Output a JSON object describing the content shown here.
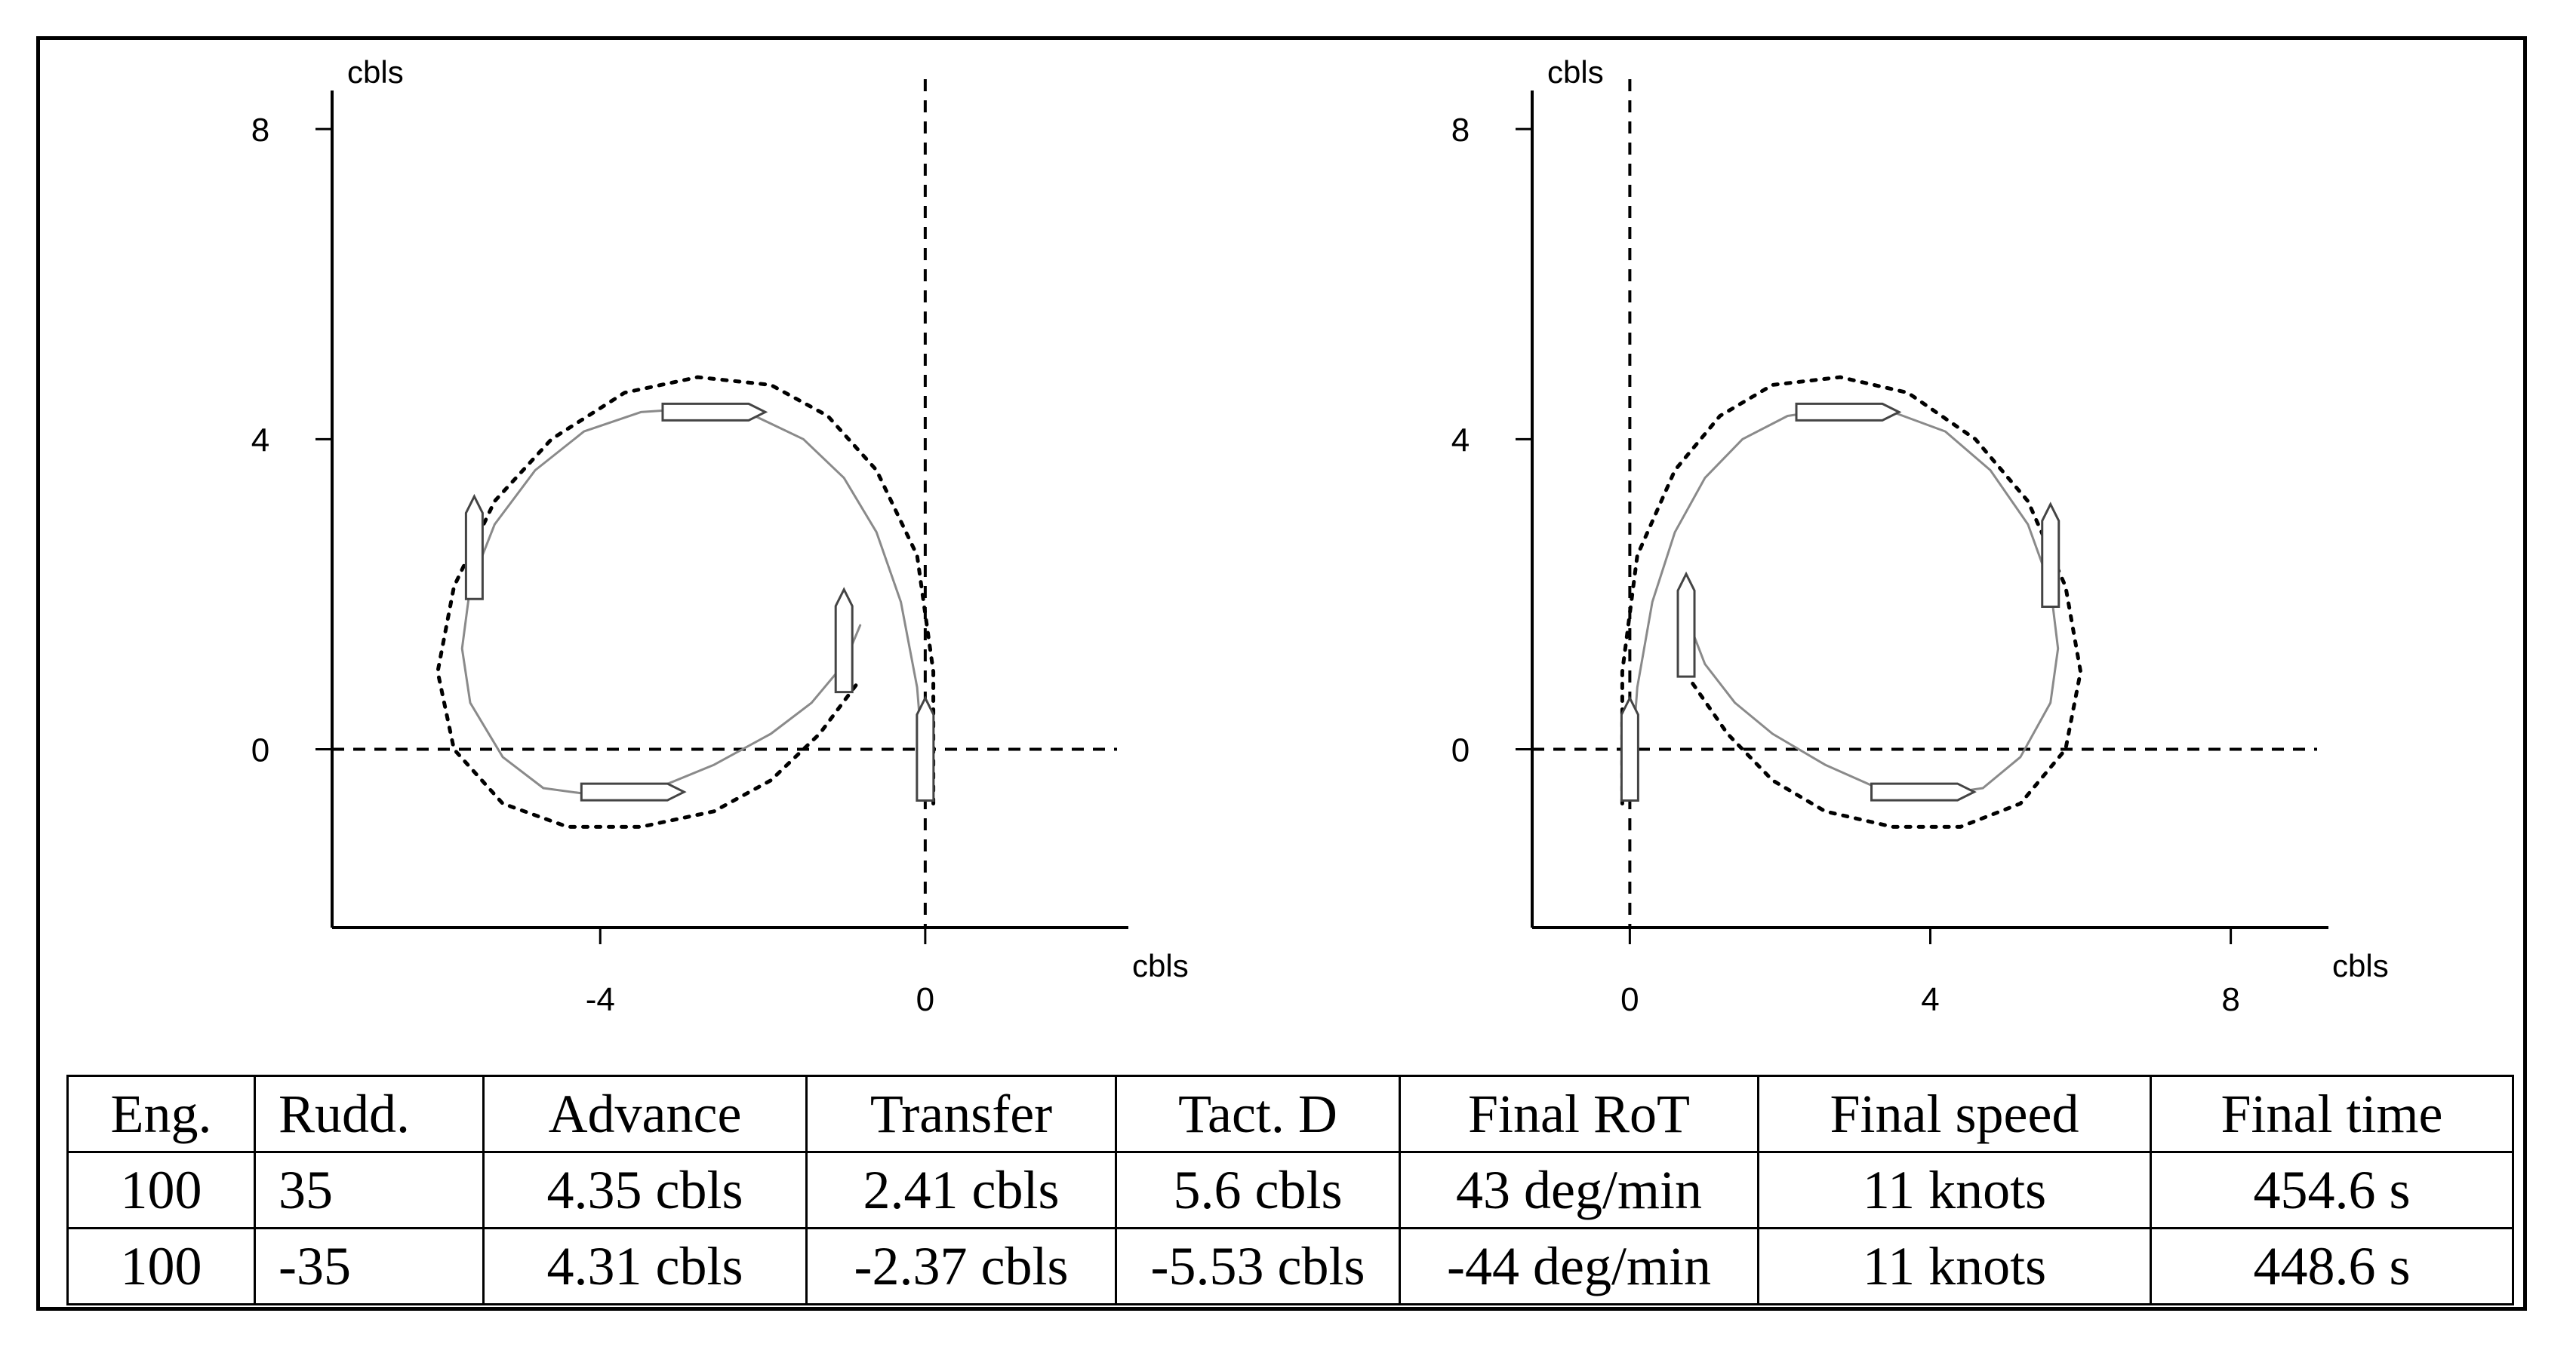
{
  "chart_data": [
    {
      "type": "line",
      "xlabel": "cbls",
      "ylabel": "cbls",
      "xlim": [
        -7.3,
        2.5
      ],
      "ylim": [
        -2.3,
        8.4
      ],
      "xticks": [
        -4,
        0
      ],
      "yticks": [
        0,
        4,
        8
      ],
      "tick_labels_x": [
        "-4",
        "0"
      ],
      "tick_labels_y": [
        "0",
        "4",
        "8"
      ],
      "reference_lines": {
        "x": 0,
        "y": 0,
        "style": "dashed"
      },
      "grid": false,
      "legend": "none",
      "series": [
        {
          "style": "solid",
          "x": [
            0,
            -0.1,
            -0.3,
            -0.6,
            -1.0,
            -1.5,
            -2.1,
            -2.8,
            -3.5,
            -4.2,
            -4.8,
            -5.3,
            -5.6,
            -5.7,
            -5.6,
            -5.2,
            -4.7,
            -4.0,
            -3.3,
            -2.6,
            -1.9,
            -1.4,
            -1.0,
            -0.8
          ],
          "y": [
            -0.5,
            0.8,
            1.9,
            2.8,
            3.5,
            4.0,
            4.3,
            4.4,
            4.35,
            4.1,
            3.6,
            2.9,
            2.1,
            1.3,
            0.6,
            -0.1,
            -0.5,
            -0.6,
            -0.5,
            -0.2,
            0.2,
            0.6,
            1.1,
            1.6
          ]
        },
        {
          "style": "dotted",
          "x": [
            0.1,
            0.1,
            -0.1,
            -0.6,
            -1.2,
            -1.9,
            -2.8,
            -3.7,
            -4.6,
            -5.3,
            -5.8,
            -6.0,
            -5.8,
            -5.2,
            -4.4,
            -3.5,
            -2.6,
            -1.9,
            -1.3,
            -0.8
          ],
          "y": [
            -0.7,
            1.0,
            2.5,
            3.6,
            4.3,
            4.7,
            4.8,
            4.6,
            4.0,
            3.2,
            2.1,
            1.0,
            0.0,
            -0.7,
            -1.0,
            -1.0,
            -0.8,
            -0.4,
            0.2,
            0.9
          ]
        }
      ],
      "ship_markers": [
        {
          "x": 0,
          "y": 0,
          "heading": "vertical"
        },
        {
          "x": -1.0,
          "y": 1.4,
          "heading": "vertical"
        },
        {
          "x": -2.6,
          "y": 4.35,
          "heading": "horizontal"
        },
        {
          "x": -5.55,
          "y": 2.6,
          "heading": "vertical"
        },
        {
          "x": -3.6,
          "y": -0.55,
          "heading": "horizontal"
        }
      ]
    },
    {
      "type": "line",
      "xlabel": "cbls",
      "ylabel": "cbls",
      "xlim": [
        -1.3,
        9.3
      ],
      "ylim": [
        -2.3,
        8.4
      ],
      "xticks": [
        0,
        4,
        8
      ],
      "yticks": [
        0,
        4,
        8
      ],
      "tick_labels_x": [
        "0",
        "4",
        "8"
      ],
      "tick_labels_y": [
        "0",
        "4",
        "8"
      ],
      "reference_lines": {
        "x": 0,
        "y": 0,
        "style": "dashed"
      },
      "grid": false,
      "legend": "none",
      "series": [
        {
          "style": "solid",
          "x": [
            0,
            0.1,
            0.3,
            0.6,
            1.0,
            1.5,
            2.1,
            2.8,
            3.5,
            4.2,
            4.8,
            5.3,
            5.6,
            5.7,
            5.6,
            5.2,
            4.7,
            4.0,
            3.3,
            2.6,
            1.9,
            1.4,
            1.0,
            0.8
          ],
          "y": [
            -0.5,
            0.8,
            1.9,
            2.8,
            3.5,
            4.0,
            4.3,
            4.4,
            4.35,
            4.1,
            3.6,
            2.9,
            2.1,
            1.3,
            0.6,
            -0.1,
            -0.5,
            -0.6,
            -0.5,
            -0.2,
            0.2,
            0.6,
            1.1,
            1.6
          ]
        },
        {
          "style": "dotted",
          "x": [
            -0.1,
            -0.1,
            0.1,
            0.6,
            1.2,
            1.9,
            2.8,
            3.7,
            4.6,
            5.3,
            5.8,
            6.0,
            5.8,
            5.2,
            4.4,
            3.5,
            2.6,
            1.9,
            1.3,
            0.8
          ],
          "y": [
            -0.7,
            1.0,
            2.5,
            3.6,
            4.3,
            4.7,
            4.8,
            4.6,
            4.0,
            3.2,
            2.1,
            1.0,
            0.0,
            -0.7,
            -1.0,
            -1.0,
            -0.8,
            -0.4,
            0.2,
            0.9
          ]
        }
      ],
      "ship_markers": [
        {
          "x": 0,
          "y": 0,
          "heading": "vertical"
        },
        {
          "x": 0.75,
          "y": 1.6,
          "heading": "vertical"
        },
        {
          "x": 2.9,
          "y": 4.35,
          "heading": "horizontal"
        },
        {
          "x": 5.6,
          "y": 2.5,
          "heading": "vertical"
        },
        {
          "x": 3.9,
          "y": -0.55,
          "heading": "horizontal"
        }
      ]
    }
  ],
  "table": {
    "headers": [
      "Eng.",
      "Rudd.",
      "Advance",
      "Transfer",
      "Tact. D",
      "Final RoT",
      "Final speed",
      "Final time"
    ],
    "rows": [
      [
        "100",
        "35",
        "4.35 cbls",
        "2.41 cbls",
        "5.6 cbls",
        "43 deg/min",
        "11 knots",
        "454.6 s"
      ],
      [
        "100",
        "-35",
        "4.31 cbls",
        "-2.37 cbls",
        "-5.53 cbls",
        "-44 deg/min",
        "11 knots",
        "448.6 s"
      ]
    ]
  }
}
